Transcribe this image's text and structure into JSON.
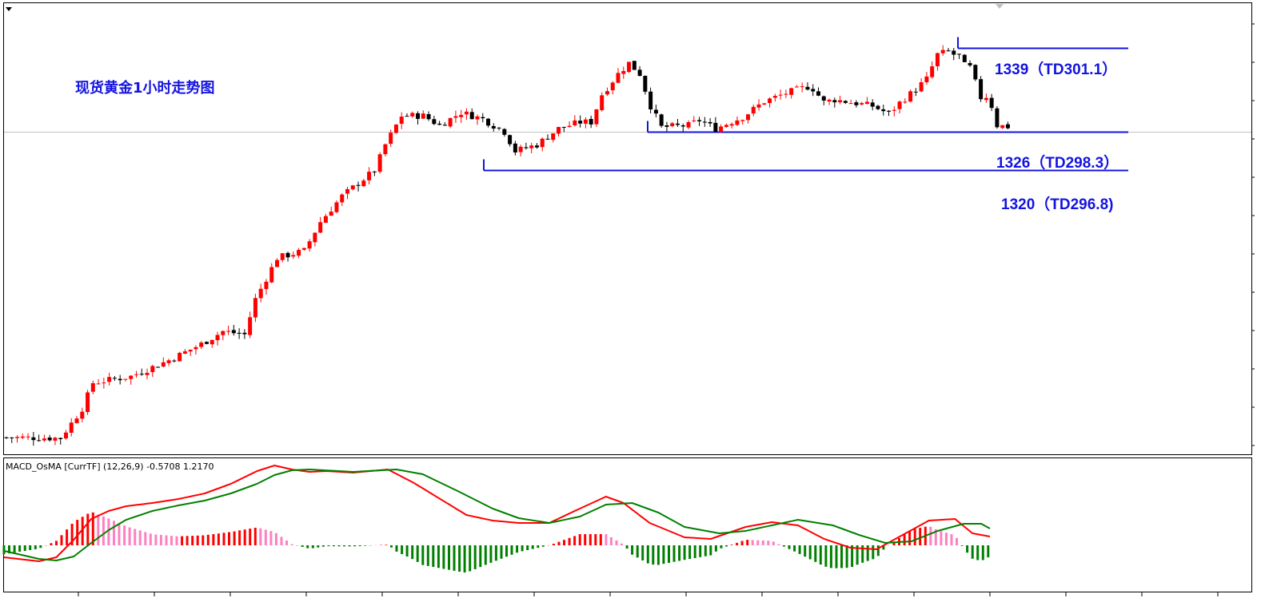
{
  "chart_data": [
    {
      "type": "candlestick",
      "title": "现货黄金1小时走势图",
      "colors": {
        "up": "#ff0000",
        "down": "#000000",
        "level_line": "#1414e0",
        "price_line": "#c0c0c0"
      },
      "levels": [
        {
          "price": 1339,
          "label": "1339（TD301.1）"
        },
        {
          "price": 1326,
          "label": "1326（TD298.3）"
        },
        {
          "price": 1320,
          "label": "1320（TD296.8)"
        }
      ],
      "ylim": [
        1277,
        1344
      ]
    },
    {
      "type": "line",
      "title": "MACD_OsMA [CurrTF] (12,26,9) -0.5708 1.2170",
      "series": [
        {
          "color": "#ff0000"
        },
        {
          "color": "#008000"
        }
      ],
      "histogram_colors": {
        "up_rising": "#ff0000",
        "up_falling": "#ff80c0",
        "down": "#008000"
      }
    }
  ]
}
